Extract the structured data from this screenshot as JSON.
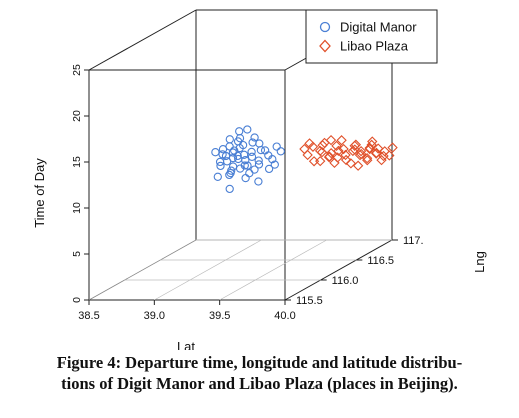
{
  "chart_data": {
    "type": "scatter3d",
    "title": "",
    "xlabel": "Lat",
    "ylabel": "Lng",
    "zlabel": "Time of Day",
    "x_ticks": [
      "38.5",
      "39.0",
      "39.5",
      "40.0"
    ],
    "y_ticks": [
      "115.5",
      "116.0",
      "116.5",
      "117."
    ],
    "z_ticks": [
      "0",
      "5",
      "10",
      "15",
      "20",
      "25"
    ],
    "xlim": [
      38.5,
      40.0
    ],
    "ylim": [
      115.5,
      117.0
    ],
    "zlim": [
      0,
      25
    ],
    "grid": "floor",
    "legend_position": "top-right",
    "series": [
      {
        "name": "Digital Manor",
        "marker": "circle",
        "color": "#4a7fd4",
        "points": [
          [
            39.12,
            116.3,
            11.6
          ],
          [
            39.17,
            116.29,
            12.6
          ],
          [
            39.2,
            116.33,
            12.9
          ],
          [
            39.25,
            116.31,
            11.1
          ],
          [
            39.11,
            116.35,
            9.9
          ],
          [
            39.15,
            116.28,
            13.3
          ],
          [
            39.3,
            116.32,
            12.0
          ],
          [
            39.22,
            116.3,
            10.8
          ],
          [
            39.08,
            116.31,
            12.3
          ],
          [
            39.35,
            116.33,
            13.4
          ],
          [
            39.18,
            116.36,
            14.6
          ],
          [
            39.27,
            116.28,
            11.8
          ],
          [
            39.13,
            116.34,
            10.4
          ],
          [
            39.4,
            116.32,
            12.7
          ],
          [
            39.21,
            116.29,
            13.8
          ],
          [
            39.05,
            116.33,
            11.4
          ],
          [
            39.33,
            116.3,
            10.7
          ],
          [
            39.16,
            116.31,
            11.9
          ],
          [
            39.28,
            116.35,
            12.4
          ],
          [
            39.1,
            116.28,
            13.0
          ],
          [
            39.24,
            116.34,
            9.6
          ],
          [
            39.37,
            116.29,
            11.3
          ],
          [
            39.19,
            116.32,
            12.1
          ],
          [
            39.31,
            116.31,
            13.6
          ],
          [
            39.14,
            116.3,
            8.6
          ],
          [
            39.26,
            116.33,
            11.0
          ],
          [
            39.02,
            116.32,
            12.5
          ],
          [
            39.43,
            116.31,
            12.2
          ],
          [
            39.23,
            116.28,
            14.2
          ],
          [
            39.12,
            116.35,
            10.1
          ],
          [
            39.34,
            116.34,
            11.5
          ],
          [
            39.18,
            116.29,
            12.8
          ],
          [
            39.29,
            116.3,
            10.3
          ],
          [
            39.45,
            116.33,
            11.7
          ],
          [
            39.07,
            116.3,
            11.1
          ],
          [
            39.21,
            116.36,
            13.1
          ],
          [
            39.39,
            116.28,
            12.9
          ],
          [
            39.15,
            116.33,
            10.9
          ],
          [
            39.32,
            116.32,
            14.1
          ],
          [
            39.25,
            116.3,
            12.3
          ],
          [
            39.48,
            116.31,
            11.2
          ],
          [
            39.09,
            116.34,
            12.0
          ],
          [
            39.36,
            116.3,
            9.4
          ],
          [
            39.2,
            116.31,
            11.8
          ],
          [
            39.52,
            116.32,
            12.6
          ],
          [
            39.28,
            116.29,
            15.1
          ],
          [
            39.13,
            116.32,
            13.9
          ],
          [
            39.42,
            116.34,
            10.6
          ],
          [
            39.06,
            116.28,
            10.0
          ],
          [
            39.5,
            116.3,
            13.2
          ]
        ]
      },
      {
        "name": "Libao Plaza",
        "marker": "diamond",
        "color": "#e0502a",
        "points": [
          [
            39.6,
            116.55,
            11.2
          ],
          [
            39.63,
            116.57,
            12.0
          ],
          [
            39.66,
            116.53,
            10.6
          ],
          [
            39.69,
            116.56,
            11.6
          ],
          [
            39.72,
            116.54,
            12.3
          ],
          [
            39.75,
            116.58,
            10.9
          ],
          [
            39.78,
            116.55,
            11.4
          ],
          [
            39.81,
            116.57,
            12.1
          ],
          [
            39.84,
            116.53,
            11.0
          ],
          [
            39.87,
            116.56,
            11.8
          ],
          [
            39.9,
            116.54,
            10.7
          ],
          [
            39.93,
            116.58,
            11.5
          ],
          [
            39.96,
            116.55,
            12.2
          ],
          [
            39.99,
            116.57,
            11.1
          ],
          [
            40.02,
            116.53,
            11.7
          ],
          [
            40.05,
            116.56,
            10.8
          ],
          [
            40.08,
            116.54,
            12.0
          ],
          [
            40.11,
            116.58,
            11.3
          ],
          [
            40.14,
            116.55,
            11.9
          ],
          [
            40.17,
            116.57,
            11.0
          ],
          [
            39.62,
            116.54,
            12.5
          ],
          [
            39.68,
            116.58,
            10.4
          ],
          [
            39.74,
            116.53,
            12.6
          ],
          [
            39.8,
            116.56,
            10.3
          ],
          [
            39.86,
            116.55,
            12.8
          ],
          [
            39.92,
            116.57,
            10.2
          ],
          [
            39.98,
            116.53,
            12.4
          ],
          [
            40.04,
            116.58,
            10.5
          ],
          [
            40.1,
            116.54,
            12.7
          ],
          [
            40.16,
            116.56,
            10.6
          ],
          [
            39.71,
            116.55,
            11.5
          ],
          [
            39.77,
            116.54,
            11.0
          ],
          [
            39.83,
            116.56,
            11.6
          ],
          [
            39.89,
            116.55,
            11.2
          ],
          [
            39.95,
            116.57,
            11.7
          ],
          [
            40.01,
            116.55,
            11.3
          ],
          [
            40.07,
            116.56,
            11.8
          ],
          [
            40.13,
            116.54,
            11.4
          ],
          [
            40.19,
            116.55,
            11.6
          ],
          [
            40.22,
            116.56,
            11.1
          ],
          [
            39.57,
            116.56,
            11.8
          ],
          [
            40.25,
            116.55,
            12.0
          ],
          [
            39.79,
            116.53,
            12.9
          ],
          [
            39.97,
            116.58,
            9.9
          ],
          [
            40.09,
            116.55,
            12.3
          ]
        ]
      }
    ]
  },
  "caption": {
    "line1": "Figure 4: Departure time, longitude and latitude distribu-",
    "line2": "tions of Digit Manor and Libao Plaza (places in Beijing)."
  }
}
